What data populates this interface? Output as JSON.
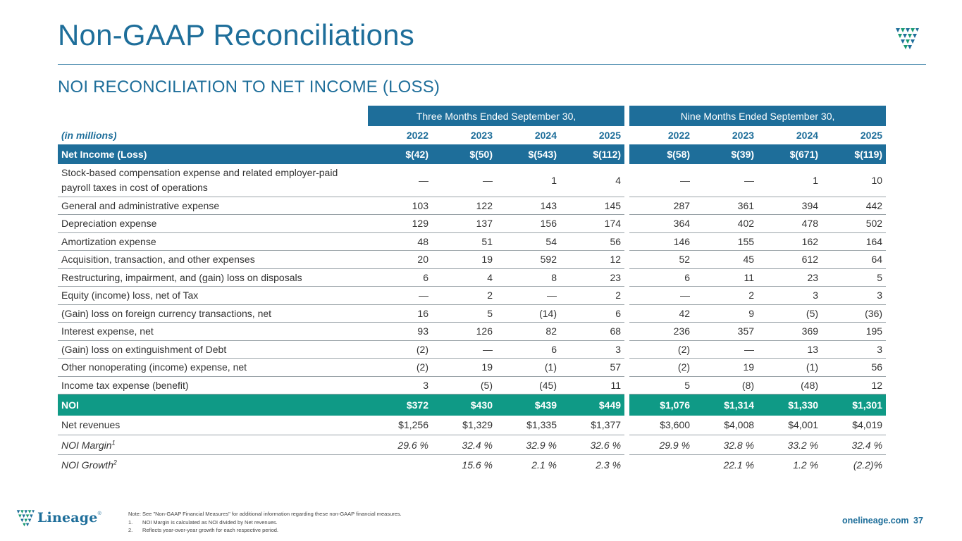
{
  "header": {
    "title": "Non-GAAP Reconciliations",
    "subtitle": "NOI RECONCILIATION TO NET INCOME (LOSS)"
  },
  "table": {
    "group_three": "Three Months Ended September 30,",
    "group_nine": "Nine Months Ended September 30,",
    "unit_label": "(in millions)",
    "years": [
      "2022",
      "2023",
      "2024",
      "2025",
      "2022",
      "2023",
      "2024",
      "2025"
    ],
    "net_income": {
      "label": "Net Income (Loss)",
      "values": [
        "$(42)",
        "$(50)",
        "$(543)",
        "$(112)",
        "$(58)",
        "$(39)",
        "$(671)",
        "$(119)"
      ]
    },
    "rows": [
      {
        "label": "Stock-based compensation expense and related employer-paid payroll taxes in cost of operations",
        "values": [
          "—",
          "—",
          "1",
          "4",
          "—",
          "—",
          "1",
          "10"
        ]
      },
      {
        "label": "General and administrative expense",
        "values": [
          "103",
          "122",
          "143",
          "145",
          "287",
          "361",
          "394",
          "442"
        ]
      },
      {
        "label": "Depreciation expense",
        "values": [
          "129",
          "137",
          "156",
          "174",
          "364",
          "402",
          "478",
          "502"
        ]
      },
      {
        "label": "Amortization expense",
        "values": [
          "48",
          "51",
          "54",
          "56",
          "146",
          "155",
          "162",
          "164"
        ]
      },
      {
        "label": "Acquisition, transaction, and other expenses",
        "values": [
          "20",
          "19",
          "592",
          "12",
          "52",
          "45",
          "612",
          "64"
        ]
      },
      {
        "label": "Restructuring, impairment, and (gain) loss on disposals",
        "values": [
          "6",
          "4",
          "8",
          "23",
          "6",
          "11",
          "23",
          "5"
        ]
      },
      {
        "label": "Equity (income) loss, net of Tax",
        "values": [
          "—",
          "2",
          "—",
          "2",
          "—",
          "2",
          "3",
          "3"
        ]
      },
      {
        "label": "(Gain) loss on foreign currency transactions, net",
        "values": [
          "16",
          "5",
          "(14)",
          "6",
          "42",
          "9",
          "(5)",
          "(36)"
        ]
      },
      {
        "label": "Interest expense, net",
        "values": [
          "93",
          "126",
          "82",
          "68",
          "236",
          "357",
          "369",
          "195"
        ]
      },
      {
        "label": "(Gain) loss on extinguishment of Debt",
        "values": [
          "(2)",
          "—",
          "6",
          "3",
          "(2)",
          "—",
          "13",
          "3"
        ]
      },
      {
        "label": "Other nonoperating (income) expense, net",
        "values": [
          "(2)",
          "19",
          "(1)",
          "57",
          "(2)",
          "19",
          "(1)",
          "56"
        ]
      },
      {
        "label": "Income tax expense (benefit)",
        "values": [
          "3",
          "(5)",
          "(45)",
          "11",
          "5",
          "(8)",
          "(48)",
          "12"
        ]
      }
    ],
    "noi": {
      "label": "NOI",
      "values": [
        "$372",
        "$430",
        "$439",
        "$449",
        "$1,076",
        "$1,314",
        "$1,330",
        "$1,301"
      ]
    },
    "net_revenues": {
      "label": "Net revenues",
      "values": [
        "$1,256",
        "$1,329",
        "$1,335",
        "$1,377",
        "$3,600",
        "$4,008",
        "$4,001",
        "$4,019"
      ]
    },
    "noi_margin": {
      "label": "NOI Margin",
      "sup": "1",
      "values": [
        "29.6 %",
        "32.4 %",
        "32.9 %",
        "32.6 %",
        "29.9 %",
        "32.8 %",
        "33.2 %",
        "32.4 %"
      ]
    },
    "noi_growth": {
      "label": "NOI Growth",
      "sup": "2",
      "values": [
        "",
        "15.6 %",
        "2.1 %",
        "2.3 %",
        "",
        "22.1 %",
        "1.2 %",
        "(2.2)%"
      ]
    }
  },
  "footer": {
    "brand": "Lineage",
    "brand_mark": "®",
    "note": "Note: See \"Non-GAAP Financial Measures\" for additional information regarding these non-GAAP financial measures.",
    "footnotes": [
      {
        "num": "1.",
        "text": "NOI Margin is calculated as NOI divided by Net revenues."
      },
      {
        "num": "2.",
        "text": "Reflects year-over-year growth for each respective period."
      }
    ],
    "website": "onelineage.com",
    "page_number": "37"
  },
  "colors": {
    "brand_blue": "#1e6e9a",
    "noi_green": "#0f9a86",
    "logo_green": "#1a9b72"
  }
}
